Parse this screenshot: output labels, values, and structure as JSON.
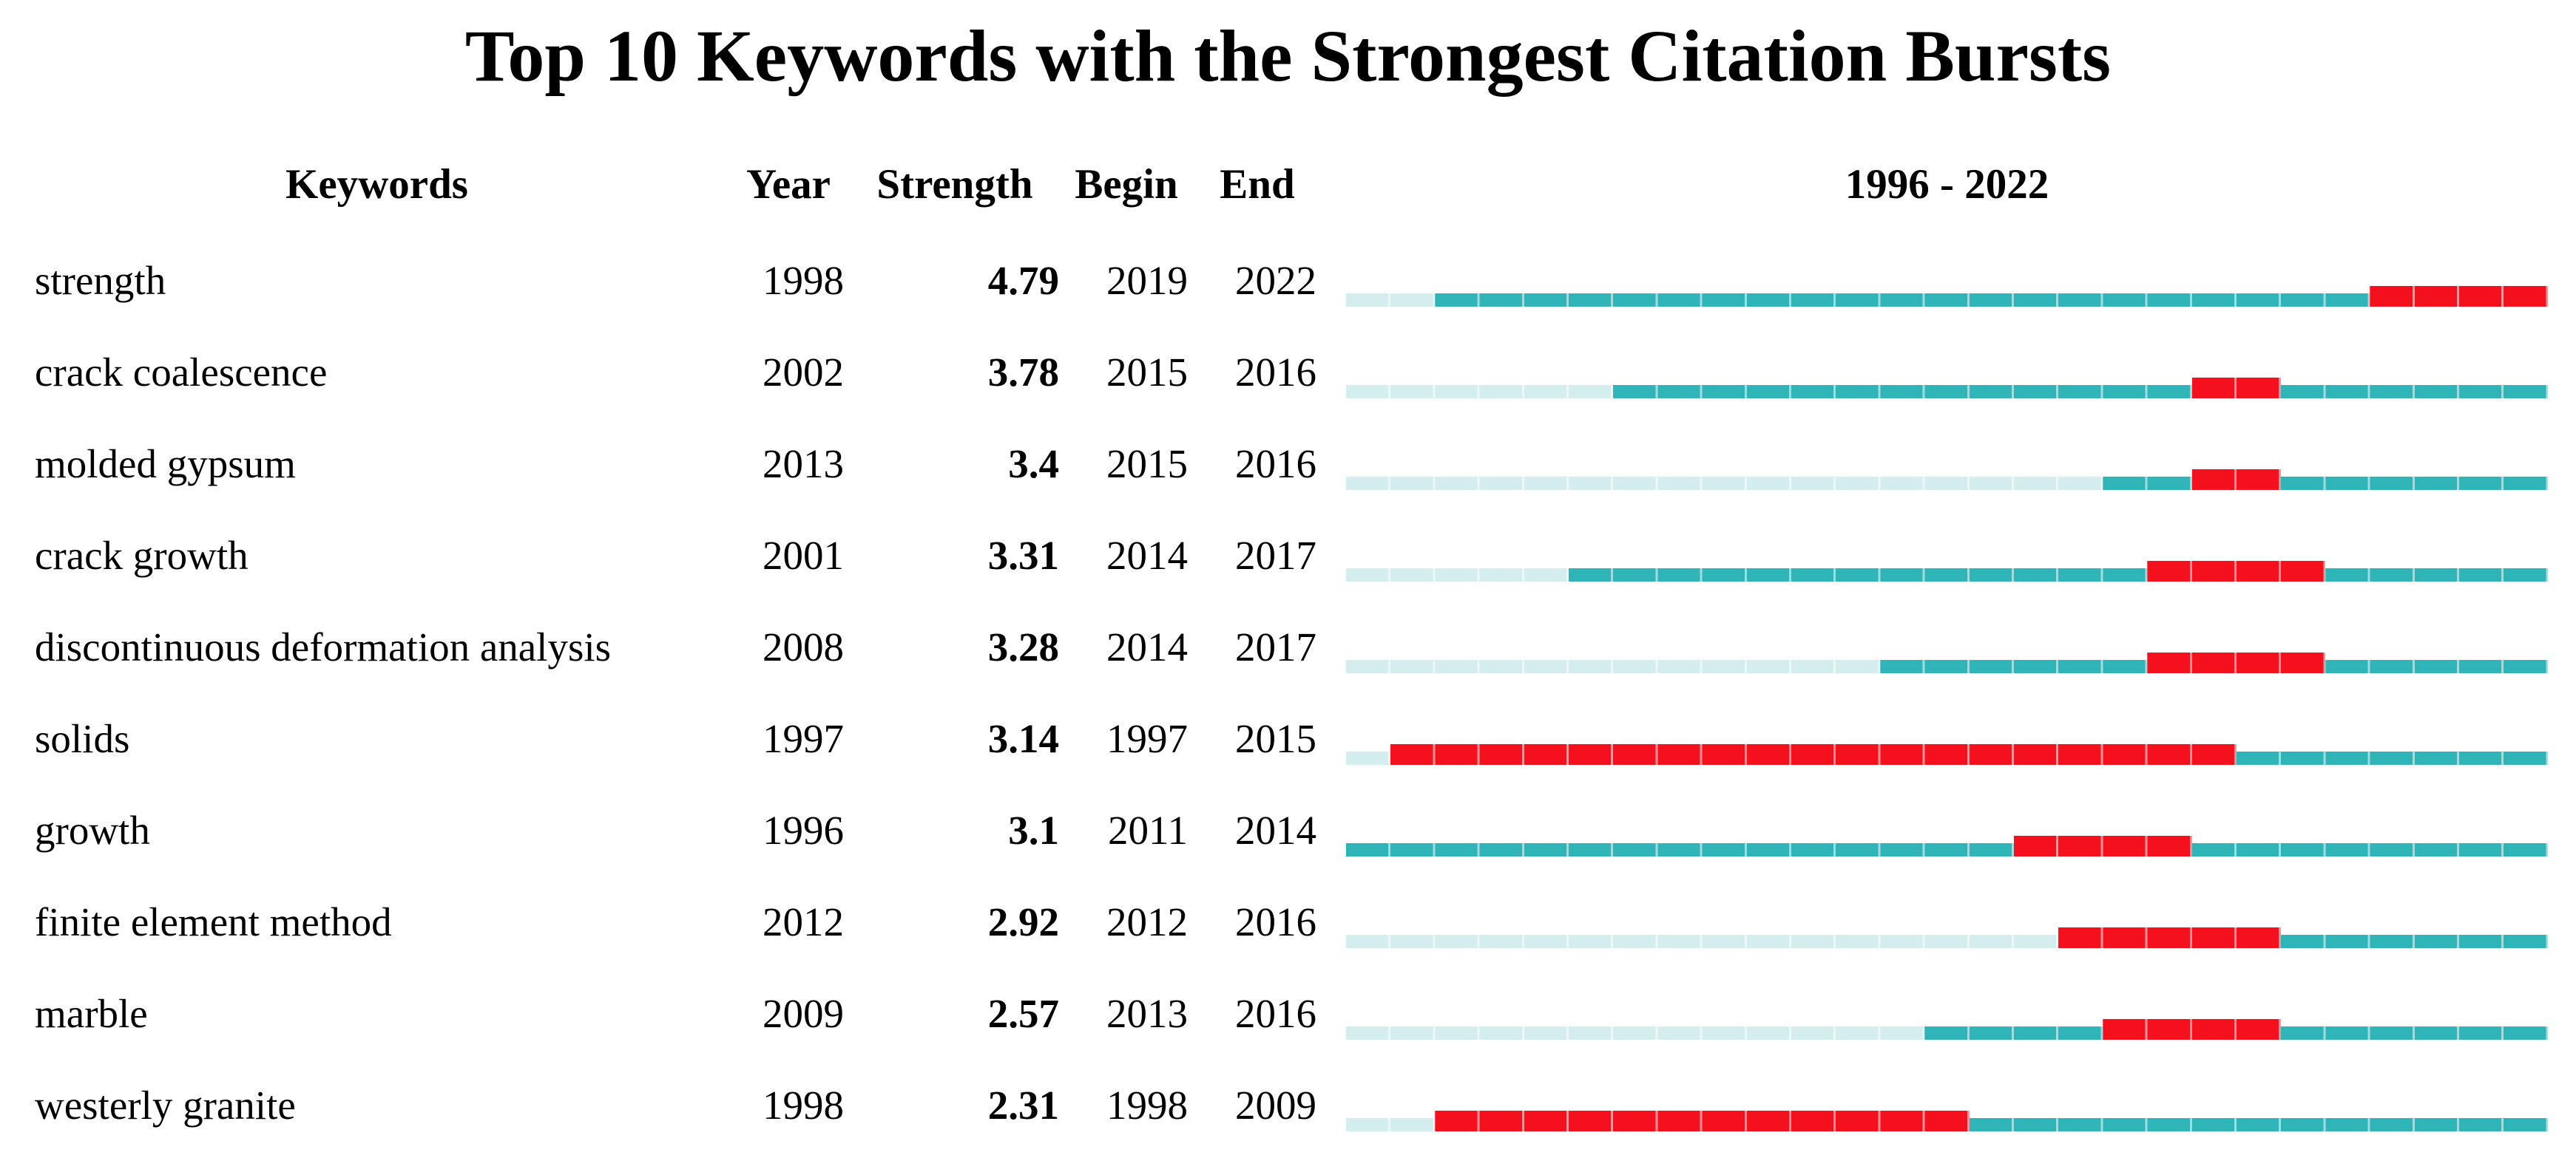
{
  "chart_data": {
    "type": "table",
    "title": "Top 10 Keywords with the Strongest Citation Bursts",
    "columns": {
      "keywords": "Keywords",
      "year": "Year",
      "strength": "Strength",
      "begin": "Begin",
      "end": "End",
      "timeline": "1996 - 2022"
    },
    "timeline": {
      "start_year": 1996,
      "end_year": 2022
    },
    "colors": {
      "pre_appearance": "#D4EEF0",
      "active_period": "#2FB4B8",
      "burst_period": "#F5101D"
    },
    "rows": [
      {
        "keyword": "strength",
        "year": 1998,
        "strength": "4.79",
        "begin": 2019,
        "end": 2022
      },
      {
        "keyword": "crack coalescence",
        "year": 2002,
        "strength": "3.78",
        "begin": 2015,
        "end": 2016
      },
      {
        "keyword": "molded gypsum",
        "year": 2013,
        "strength": "3.4",
        "begin": 2015,
        "end": 2016
      },
      {
        "keyword": "crack growth",
        "year": 2001,
        "strength": "3.31",
        "begin": 2014,
        "end": 2017
      },
      {
        "keyword": "discontinuous deformation analysis",
        "year": 2008,
        "strength": "3.28",
        "begin": 2014,
        "end": 2017
      },
      {
        "keyword": "solids",
        "year": 1997,
        "strength": "3.14",
        "begin": 1997,
        "end": 2015
      },
      {
        "keyword": "growth",
        "year": 1996,
        "strength": "3.1",
        "begin": 2011,
        "end": 2014
      },
      {
        "keyword": "finite element method",
        "year": 2012,
        "strength": "2.92",
        "begin": 2012,
        "end": 2016
      },
      {
        "keyword": "marble",
        "year": 2009,
        "strength": "2.57",
        "begin": 2013,
        "end": 2016
      },
      {
        "keyword": "westerly granite",
        "year": 1998,
        "strength": "2.31",
        "begin": 1998,
        "end": 2009
      }
    ]
  }
}
